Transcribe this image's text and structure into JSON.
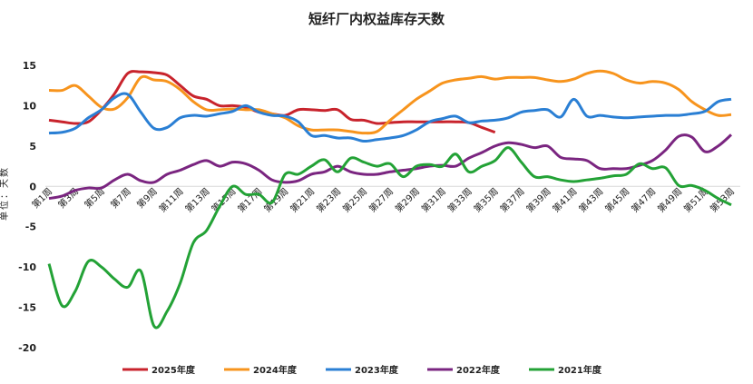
{
  "chart_data": {
    "type": "line",
    "title": "短纤厂内权益库存天数",
    "y_label": "单位：天数",
    "categories": [
      "第1周",
      null,
      "第3周",
      null,
      "第5周",
      null,
      "第7周",
      null,
      "第9周",
      null,
      "第11周",
      null,
      "第13周",
      null,
      "第15周",
      null,
      "第17周",
      null,
      "第19周",
      null,
      "第21周",
      null,
      "第23周",
      null,
      "第25周",
      null,
      "第27周",
      null,
      "第29周",
      null,
      "第31周",
      null,
      "第33周",
      null,
      "第35周",
      null,
      "第37周",
      null,
      "第39周",
      null,
      "第41周",
      null,
      "第43周",
      null,
      "第45周",
      null,
      "第47周",
      null,
      "第49周",
      null,
      "第51周",
      null,
      "第53周"
    ],
    "ylim": [
      -20,
      15
    ],
    "yticks": [
      -20,
      -15,
      -10,
      -5,
      0,
      5,
      10,
      15
    ],
    "grid": false,
    "legend": "bottom",
    "series": [
      {
        "name": "2025年度",
        "color": "#c8232c",
        "values": [
          8.2,
          8.0,
          7.8,
          8.0,
          9.5,
          11.5,
          14.0,
          14.2,
          14.1,
          13.8,
          12.5,
          11.2,
          10.8,
          10.0,
          10.0,
          9.8,
          9.2,
          9.0,
          8.8,
          9.5,
          9.5,
          9.4,
          9.5,
          8.3,
          8.2,
          7.8,
          7.9,
          8.0,
          8.0,
          8.0,
          8.0,
          8.0,
          7.9,
          7.3,
          6.7,
          null,
          null,
          null,
          null,
          null,
          null,
          null,
          null,
          null,
          null,
          null,
          null,
          null,
          null,
          null,
          null,
          null,
          null
        ]
      },
      {
        "name": "2024年度",
        "color": "#f7941d",
        "values": [
          11.9,
          11.9,
          12.5,
          11.2,
          9.8,
          9.6,
          11.0,
          13.5,
          13.2,
          13.0,
          12.0,
          10.5,
          9.5,
          9.5,
          9.6,
          9.5,
          9.5,
          9.0,
          8.5,
          7.5,
          7.0,
          7.0,
          7.0,
          6.8,
          6.6,
          6.8,
          8.2,
          9.5,
          10.8,
          11.8,
          12.8,
          13.2,
          13.4,
          13.6,
          13.3,
          13.5,
          13.5,
          13.5,
          13.2,
          13.0,
          13.3,
          14.0,
          14.3,
          14.0,
          13.2,
          12.8,
          13.0,
          12.8,
          12.0,
          10.5,
          9.5,
          8.8,
          8.9
        ]
      },
      {
        "name": "2023年度",
        "color": "#2a7fd4",
        "values": [
          6.6,
          6.7,
          7.2,
          8.5,
          9.5,
          11.0,
          11.4,
          9.2,
          7.2,
          7.3,
          8.5,
          8.8,
          8.7,
          9.0,
          9.3,
          10.0,
          9.2,
          8.8,
          8.7,
          8.0,
          6.3,
          6.3,
          6.0,
          6.0,
          5.6,
          5.8,
          6.0,
          6.3,
          7.0,
          8.0,
          8.4,
          8.7,
          7.9,
          8.1,
          8.2,
          8.5,
          9.2,
          9.4,
          9.5,
          8.6,
          10.8,
          8.7,
          8.8,
          8.6,
          8.5,
          8.6,
          8.7,
          8.8,
          8.8,
          9.0,
          9.3,
          10.5,
          10.8
        ]
      },
      {
        "name": "2022年度",
        "color": "#7a2580",
        "values": [
          -1.5,
          -1.2,
          -0.5,
          -0.2,
          -0.2,
          0.8,
          1.5,
          0.7,
          0.5,
          1.5,
          2.0,
          2.7,
          3.2,
          2.5,
          3.0,
          2.8,
          2.0,
          0.8,
          0.5,
          0.7,
          1.5,
          1.8,
          2.5,
          1.8,
          1.5,
          1.5,
          1.8,
          2.0,
          2.2,
          2.5,
          2.6,
          2.5,
          3.5,
          4.2,
          5.0,
          5.4,
          5.2,
          4.8,
          5.0,
          3.6,
          3.4,
          3.2,
          2.2,
          2.2,
          2.2,
          2.6,
          3.2,
          4.5,
          6.2,
          6.1,
          4.3,
          5.0,
          6.4
        ]
      },
      {
        "name": "2021年度",
        "color": "#23a236",
        "values": [
          -9.6,
          -14.8,
          -13.0,
          -9.3,
          -10.0,
          -11.5,
          -12.5,
          -10.5,
          -17.3,
          -15.5,
          -12.0,
          -7.0,
          -5.5,
          -2.5,
          0.0,
          -1.0,
          -1.0,
          -2.0,
          1.5,
          1.5,
          2.5,
          3.3,
          1.8,
          3.5,
          3.0,
          2.5,
          2.8,
          1.2,
          2.5,
          2.7,
          2.5,
          4.0,
          1.8,
          2.5,
          3.2,
          4.8,
          3.0,
          1.2,
          1.2,
          0.8,
          0.6,
          0.8,
          1.0,
          1.3,
          1.5,
          2.8,
          2.2,
          2.3,
          0.1,
          0.1,
          -0.5,
          -1.5,
          -2.3
        ]
      }
    ]
  }
}
